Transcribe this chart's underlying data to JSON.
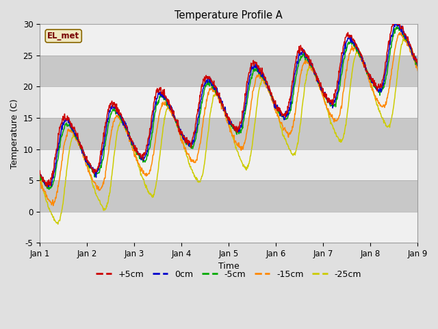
{
  "title": "Temperature Profile A",
  "xlabel": "Time",
  "ylabel": "Temperature (C)",
  "ylim": [
    -5,
    30
  ],
  "xlim": [
    0,
    8
  ],
  "xtick_labels": [
    "Jan 1",
    "Jan 2",
    "Jan 3",
    "Jan 4",
    "Jan 5",
    "Jan 6",
    "Jan 7",
    "Jan 8",
    "Jan 9"
  ],
  "ytick_values": [
    -5,
    0,
    5,
    10,
    15,
    20,
    25,
    30
  ],
  "colors": {
    "+5cm": "#cc0000",
    "0cm": "#0000cc",
    "-5cm": "#00aa00",
    "-15cm": "#ff8800",
    "-25cm": "#cccc00"
  },
  "annotation": "EL_met",
  "bg_color": "#e0e0e0",
  "plot_bg": "#e0e0e0",
  "band_colors": [
    "#f0f0f0",
    "#c8c8c8"
  ],
  "band_ranges": [
    [
      -5,
      0
    ],
    [
      0,
      5
    ],
    [
      5,
      10
    ],
    [
      10,
      15
    ],
    [
      15,
      20
    ],
    [
      20,
      25
    ],
    [
      25,
      30
    ]
  ],
  "n_points": 960,
  "days": 8
}
